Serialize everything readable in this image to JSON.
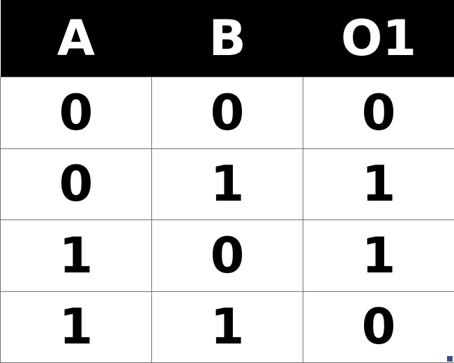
{
  "table": {
    "headers": [
      "A",
      "B",
      "O1"
    ],
    "rows": [
      [
        "0",
        "0",
        "0"
      ],
      [
        "0",
        "1",
        "1"
      ],
      [
        "1",
        "0",
        "1"
      ],
      [
        "1",
        "1",
        "0"
      ]
    ]
  },
  "colors": {
    "header_background": "#000000",
    "header_text": "#ffffff",
    "cell_text": "#000000",
    "grid_line": "#6f6f6f",
    "resize_handle": "#3a4f8a"
  }
}
